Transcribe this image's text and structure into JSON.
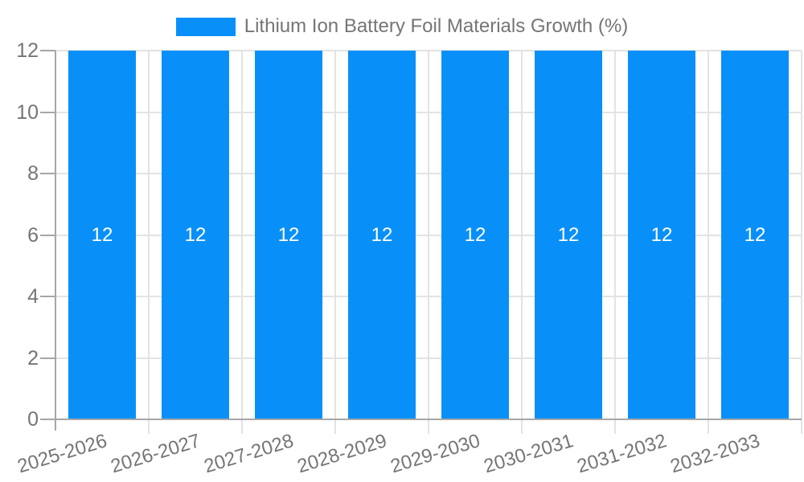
{
  "chart_data": {
    "type": "bar",
    "title": "Lithium Ion Battery Foil Materials Growth (%)",
    "legend_position": "top",
    "categories": [
      "2025-2026",
      "2026-2027",
      "2027-2028",
      "2028-2029",
      "2029-2030",
      "2030-2031",
      "2031-2032",
      "2032-2033"
    ],
    "series": [
      {
        "name": "Lithium Ion Battery Foil Materials Growth (%)",
        "color": "#0990f8",
        "values": [
          12,
          12,
          12,
          12,
          12,
          12,
          12,
          12
        ]
      }
    ],
    "bar_value_labels": [
      "12",
      "12",
      "12",
      "12",
      "12",
      "12",
      "12",
      "12"
    ],
    "xlabel": "",
    "ylabel": "",
    "ylim": [
      0,
      12
    ],
    "yticks": [
      0,
      2,
      4,
      6,
      8,
      10,
      12
    ],
    "grid": true,
    "x_tick_rotation_deg": -17,
    "colors": {
      "bar": "#0990f8",
      "bar_value_label": "#ffffff",
      "axis_text": "#757575",
      "gridline": "#e3e3e3",
      "axis_line": "#a6a6a6",
      "background": "#ffffff"
    }
  }
}
